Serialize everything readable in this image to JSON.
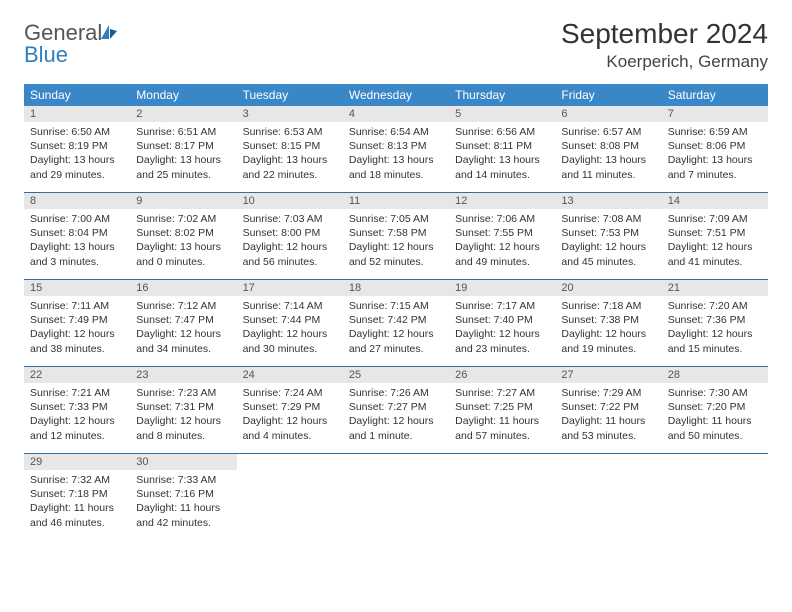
{
  "logo": {
    "text1": "General",
    "text2": "Blue"
  },
  "title": "September 2024",
  "location": "Koerperich, Germany",
  "weekdays": [
    "Sunday",
    "Monday",
    "Tuesday",
    "Wednesday",
    "Thursday",
    "Friday",
    "Saturday"
  ],
  "colors": {
    "header_bg": "#3a87c7",
    "header_text": "#ffffff",
    "daynum_bg": "#e7e7e7",
    "row_border": "#2f6fa3",
    "logo_blue": "#2f7ec0"
  },
  "typography": {
    "title_fontsize": 28,
    "location_fontsize": 17,
    "weekday_fontsize": 12,
    "body_fontsize": 10.5
  },
  "days": [
    {
      "n": "1",
      "sr": "Sunrise: 6:50 AM",
      "ss": "Sunset: 8:19 PM",
      "dl1": "Daylight: 13 hours",
      "dl2": "and 29 minutes."
    },
    {
      "n": "2",
      "sr": "Sunrise: 6:51 AM",
      "ss": "Sunset: 8:17 PM",
      "dl1": "Daylight: 13 hours",
      "dl2": "and 25 minutes."
    },
    {
      "n": "3",
      "sr": "Sunrise: 6:53 AM",
      "ss": "Sunset: 8:15 PM",
      "dl1": "Daylight: 13 hours",
      "dl2": "and 22 minutes."
    },
    {
      "n": "4",
      "sr": "Sunrise: 6:54 AM",
      "ss": "Sunset: 8:13 PM",
      "dl1": "Daylight: 13 hours",
      "dl2": "and 18 minutes."
    },
    {
      "n": "5",
      "sr": "Sunrise: 6:56 AM",
      "ss": "Sunset: 8:11 PM",
      "dl1": "Daylight: 13 hours",
      "dl2": "and 14 minutes."
    },
    {
      "n": "6",
      "sr": "Sunrise: 6:57 AM",
      "ss": "Sunset: 8:08 PM",
      "dl1": "Daylight: 13 hours",
      "dl2": "and 11 minutes."
    },
    {
      "n": "7",
      "sr": "Sunrise: 6:59 AM",
      "ss": "Sunset: 8:06 PM",
      "dl1": "Daylight: 13 hours",
      "dl2": "and 7 minutes."
    },
    {
      "n": "8",
      "sr": "Sunrise: 7:00 AM",
      "ss": "Sunset: 8:04 PM",
      "dl1": "Daylight: 13 hours",
      "dl2": "and 3 minutes."
    },
    {
      "n": "9",
      "sr": "Sunrise: 7:02 AM",
      "ss": "Sunset: 8:02 PM",
      "dl1": "Daylight: 13 hours",
      "dl2": "and 0 minutes."
    },
    {
      "n": "10",
      "sr": "Sunrise: 7:03 AM",
      "ss": "Sunset: 8:00 PM",
      "dl1": "Daylight: 12 hours",
      "dl2": "and 56 minutes."
    },
    {
      "n": "11",
      "sr": "Sunrise: 7:05 AM",
      "ss": "Sunset: 7:58 PM",
      "dl1": "Daylight: 12 hours",
      "dl2": "and 52 minutes."
    },
    {
      "n": "12",
      "sr": "Sunrise: 7:06 AM",
      "ss": "Sunset: 7:55 PM",
      "dl1": "Daylight: 12 hours",
      "dl2": "and 49 minutes."
    },
    {
      "n": "13",
      "sr": "Sunrise: 7:08 AM",
      "ss": "Sunset: 7:53 PM",
      "dl1": "Daylight: 12 hours",
      "dl2": "and 45 minutes."
    },
    {
      "n": "14",
      "sr": "Sunrise: 7:09 AM",
      "ss": "Sunset: 7:51 PM",
      "dl1": "Daylight: 12 hours",
      "dl2": "and 41 minutes."
    },
    {
      "n": "15",
      "sr": "Sunrise: 7:11 AM",
      "ss": "Sunset: 7:49 PM",
      "dl1": "Daylight: 12 hours",
      "dl2": "and 38 minutes."
    },
    {
      "n": "16",
      "sr": "Sunrise: 7:12 AM",
      "ss": "Sunset: 7:47 PM",
      "dl1": "Daylight: 12 hours",
      "dl2": "and 34 minutes."
    },
    {
      "n": "17",
      "sr": "Sunrise: 7:14 AM",
      "ss": "Sunset: 7:44 PM",
      "dl1": "Daylight: 12 hours",
      "dl2": "and 30 minutes."
    },
    {
      "n": "18",
      "sr": "Sunrise: 7:15 AM",
      "ss": "Sunset: 7:42 PM",
      "dl1": "Daylight: 12 hours",
      "dl2": "and 27 minutes."
    },
    {
      "n": "19",
      "sr": "Sunrise: 7:17 AM",
      "ss": "Sunset: 7:40 PM",
      "dl1": "Daylight: 12 hours",
      "dl2": "and 23 minutes."
    },
    {
      "n": "20",
      "sr": "Sunrise: 7:18 AM",
      "ss": "Sunset: 7:38 PM",
      "dl1": "Daylight: 12 hours",
      "dl2": "and 19 minutes."
    },
    {
      "n": "21",
      "sr": "Sunrise: 7:20 AM",
      "ss": "Sunset: 7:36 PM",
      "dl1": "Daylight: 12 hours",
      "dl2": "and 15 minutes."
    },
    {
      "n": "22",
      "sr": "Sunrise: 7:21 AM",
      "ss": "Sunset: 7:33 PM",
      "dl1": "Daylight: 12 hours",
      "dl2": "and 12 minutes."
    },
    {
      "n": "23",
      "sr": "Sunrise: 7:23 AM",
      "ss": "Sunset: 7:31 PM",
      "dl1": "Daylight: 12 hours",
      "dl2": "and 8 minutes."
    },
    {
      "n": "24",
      "sr": "Sunrise: 7:24 AM",
      "ss": "Sunset: 7:29 PM",
      "dl1": "Daylight: 12 hours",
      "dl2": "and 4 minutes."
    },
    {
      "n": "25",
      "sr": "Sunrise: 7:26 AM",
      "ss": "Sunset: 7:27 PM",
      "dl1": "Daylight: 12 hours",
      "dl2": "and 1 minute."
    },
    {
      "n": "26",
      "sr": "Sunrise: 7:27 AM",
      "ss": "Sunset: 7:25 PM",
      "dl1": "Daylight: 11 hours",
      "dl2": "and 57 minutes."
    },
    {
      "n": "27",
      "sr": "Sunrise: 7:29 AM",
      "ss": "Sunset: 7:22 PM",
      "dl1": "Daylight: 11 hours",
      "dl2": "and 53 minutes."
    },
    {
      "n": "28",
      "sr": "Sunrise: 7:30 AM",
      "ss": "Sunset: 7:20 PM",
      "dl1": "Daylight: 11 hours",
      "dl2": "and 50 minutes."
    },
    {
      "n": "29",
      "sr": "Sunrise: 7:32 AM",
      "ss": "Sunset: 7:18 PM",
      "dl1": "Daylight: 11 hours",
      "dl2": "and 46 minutes."
    },
    {
      "n": "30",
      "sr": "Sunrise: 7:33 AM",
      "ss": "Sunset: 7:16 PM",
      "dl1": "Daylight: 11 hours",
      "dl2": "and 42 minutes."
    }
  ]
}
